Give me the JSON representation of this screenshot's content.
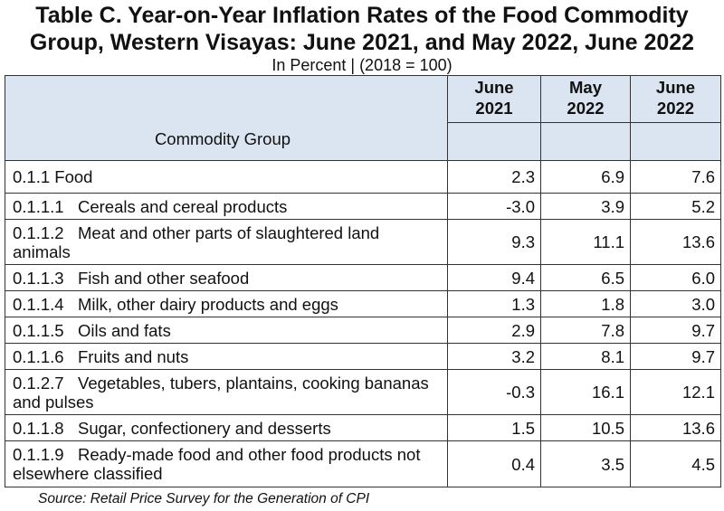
{
  "title_line1": "Table C. Year-on-Year Inflation Rates of the Food Commodity",
  "title_line2": "Group, Western Visayas: June 2021, and May 2022, June 2022",
  "subtitle": "In Percent | (2018 = 100)",
  "columns": {
    "group": "Commodity Group",
    "c1_line1": "June",
    "c1_line2": "2021",
    "c2_line1": "May",
    "c2_line2": "2022",
    "c3_line1": "June",
    "c3_line2": "2022"
  },
  "rows": [
    {
      "label": "0.1.1 Food",
      "v1": "2.3",
      "v2": "6.9",
      "v3": "7.6"
    },
    {
      "label": "0.1.1.1   Cereals and cereal products",
      "v1": "-3.0",
      "v2": "3.9",
      "v3": "5.2"
    },
    {
      "label": "0.1.1.2   Meat and other parts of slaughtered land animals",
      "v1": "9.3",
      "v2": "11.1",
      "v3": "13.6"
    },
    {
      "label": "0.1.1.3   Fish and other seafood",
      "v1": "9.4",
      "v2": "6.5",
      "v3": "6.0"
    },
    {
      "label": "0.1.1.4   Milk, other dairy products and eggs",
      "v1": "1.3",
      "v2": "1.8",
      "v3": "3.0"
    },
    {
      "label": "0.1.1.5   Oils and fats",
      "v1": "2.9",
      "v2": "7.8",
      "v3": "9.7"
    },
    {
      "label": "0.1.1.6   Fruits and nuts",
      "v1": "3.2",
      "v2": "8.1",
      "v3": "9.7"
    },
    {
      "label": "0.1.2.7   Vegetables, tubers, plantains, cooking bananas and pulses",
      "v1": "-0.3",
      "v2": "16.1",
      "v3": "12.1"
    },
    {
      "label": "0.1.1.8   Sugar, confectionery and desserts",
      "v1": "1.5",
      "v2": "10.5",
      "v3": "13.6"
    },
    {
      "label": "0.1.1.9   Ready-made food and other food products not elsewhere classified",
      "v1": "0.4",
      "v2": "3.5",
      "v3": "4.5"
    }
  ],
  "source": "Source: Retail Price Survey for the Generation of CPI"
}
